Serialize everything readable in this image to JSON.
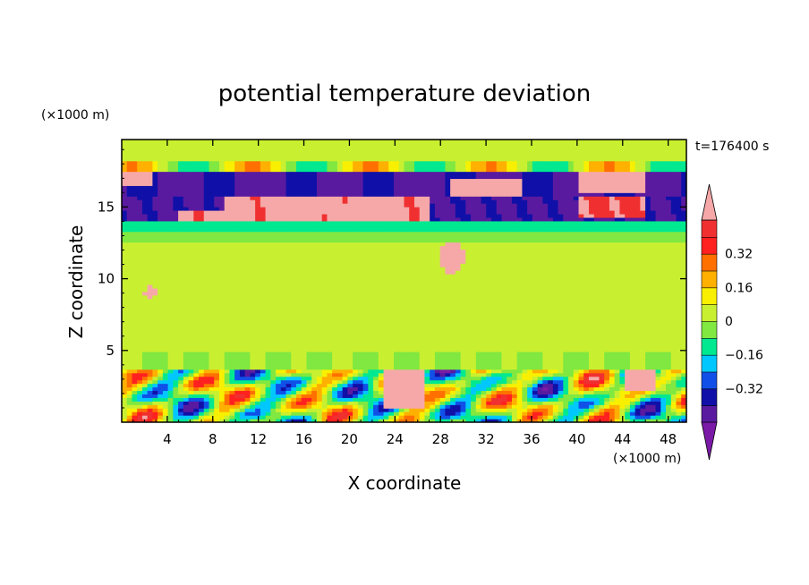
{
  "chart_data": {
    "type": "heatmap",
    "title": "potential temperature deviation",
    "xlabel": "X coordinate",
    "ylabel": "Z coordinate",
    "x_unit": "(×1000 m)",
    "y_unit": "(×1000 m)",
    "time_label": "t=176400 s",
    "xlim": [
      0,
      49.6
    ],
    "ylim": [
      0,
      19.7
    ],
    "x_ticks": [
      4,
      8,
      12,
      16,
      20,
      24,
      28,
      32,
      36,
      40,
      44,
      48
    ],
    "y_ticks": [
      5,
      10,
      15
    ],
    "colorbar": {
      "levels": [
        -0.48,
        -0.4,
        -0.32,
        -0.24,
        -0.16,
        -0.08,
        0,
        0.08,
        0.16,
        0.24,
        0.32,
        0.4,
        0.48
      ],
      "tick_labels": [
        "0.32",
        "0.16",
        "0",
        "−0.16",
        "−0.32"
      ],
      "tick_values": [
        0.32,
        0.16,
        0,
        -0.16,
        -0.32
      ],
      "colors": {
        "below_min": "#7a1aa6",
        "bands": [
          "#5a1aa0",
          "#1010a8",
          "#1050e8",
          "#00c8ff",
          "#00e890",
          "#80e840",
          "#c8f030",
          "#f8f000",
          "#ffb000",
          "#ff7000",
          "#ff2020",
          "#f03030"
        ],
        "above_max": "#f6a8a8"
      }
    },
    "layers": [
      {
        "z_range": [
          17.5,
          19.7
        ],
        "description_value": 0.04
      },
      {
        "z_range": [
          15.6,
          17.5
        ],
        "description_value": -0.4
      },
      {
        "z_range": [
          13.6,
          15.6
        ],
        "description_value": 0.5
      },
      {
        "z_range": [
          3.6,
          13.6
        ],
        "description_value": 0.04
      },
      {
        "z_range": [
          0,
          3.6
        ],
        "description_value": -0.3
      }
    ]
  }
}
